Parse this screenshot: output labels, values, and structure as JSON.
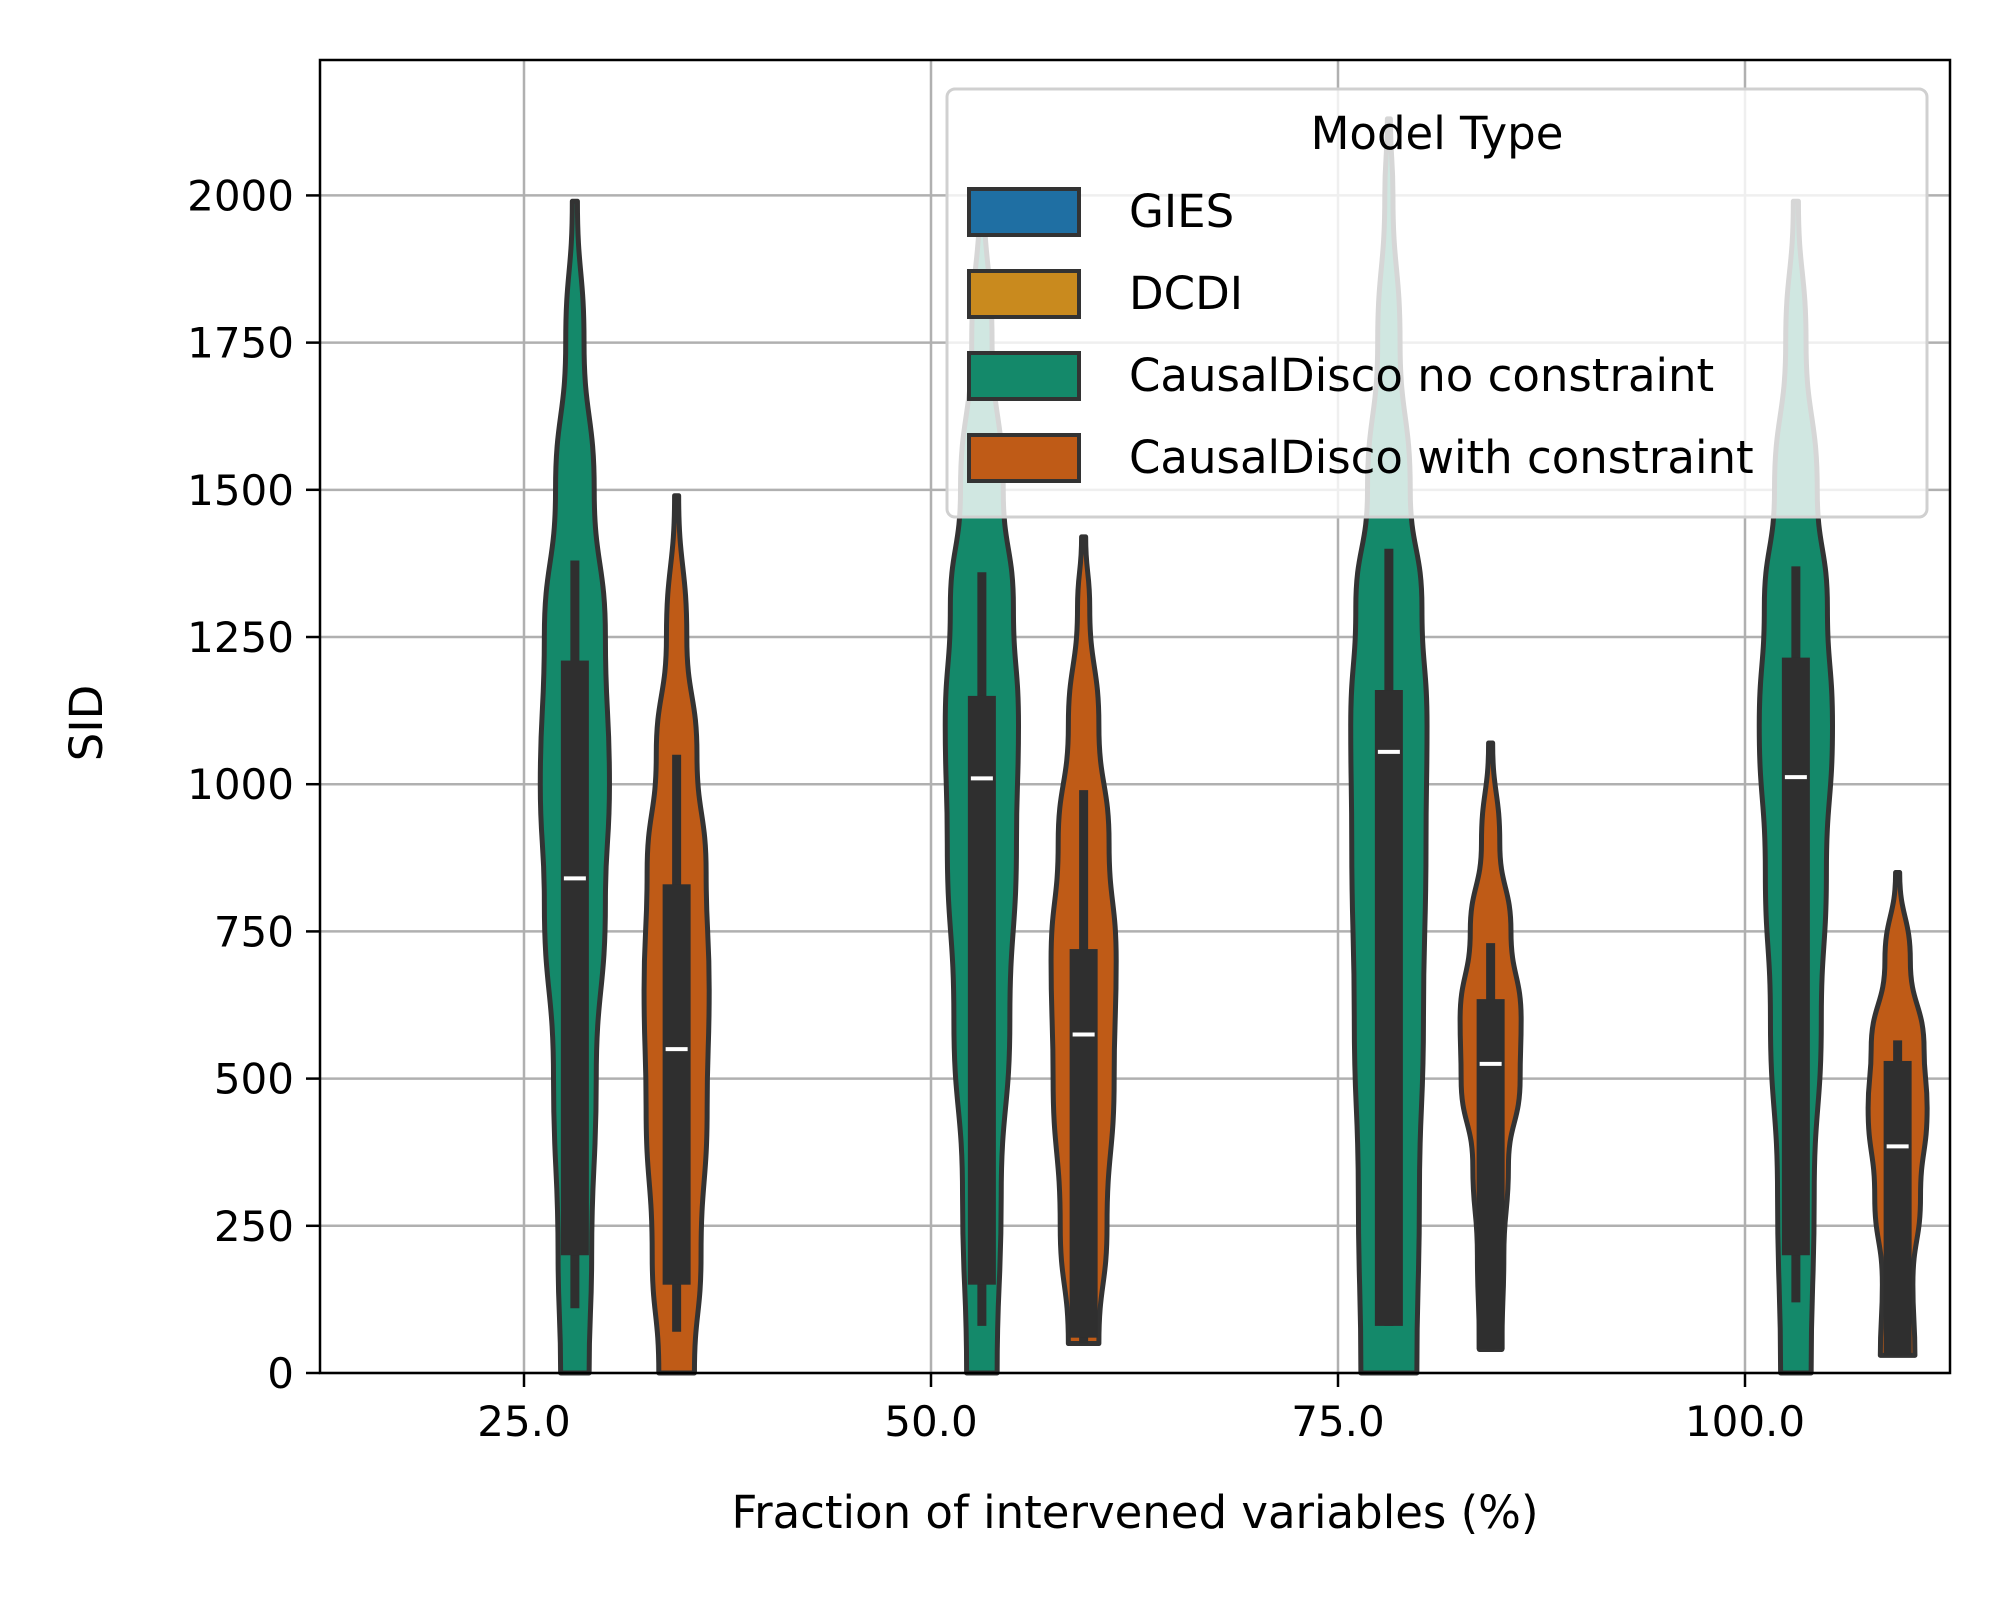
{
  "chart_data": {
    "type": "violin",
    "xlabel": "Fraction of intervened variables (%)",
    "ylabel": "SID",
    "categories": [
      "25.0",
      "50.0",
      "75.0",
      "100.0"
    ],
    "ylim": [
      0,
      2230
    ],
    "yticks": [
      "0",
      "250",
      "500",
      "750",
      "1000",
      "1250",
      "1500",
      "1750",
      "2000"
    ],
    "grid": true,
    "legend": {
      "title": "Model Type",
      "placement": "top-right",
      "entries": [
        {
          "label": "GIES",
          "color": "#1f6fa3"
        },
        {
          "label": "DCDI",
          "color": "#c98a1e"
        },
        {
          "label": "CausalDisco no constraint",
          "color": "#14896a"
        },
        {
          "label": "CausalDisco with constraint",
          "color": "#bf5b17"
        }
      ]
    },
    "series": [
      {
        "name": "CausalDisco no constraint",
        "color": "#14896a",
        "violins": [
          {
            "category": "25.0",
            "min": 0,
            "max": 1990,
            "whisker_low": 110,
            "whisker_high": 1380,
            "q1": 200,
            "q3": 1210,
            "median": 840,
            "profile": [
              [
                0,
                0.28
              ],
              [
                200,
                0.33
              ],
              [
                500,
                0.42
              ],
              [
                800,
                0.6
              ],
              [
                1000,
                0.68
              ],
              [
                1250,
                0.6
              ],
              [
                1500,
                0.38
              ],
              [
                1750,
                0.18
              ],
              [
                1990,
                0.05
              ]
            ]
          },
          {
            "category": "50.0",
            "min": 0,
            "max": 2010,
            "whisker_low": 80,
            "whisker_high": 1360,
            "q1": 150,
            "q3": 1150,
            "median": 1010,
            "profile": [
              [
                0,
                0.3
              ],
              [
                300,
                0.38
              ],
              [
                600,
                0.55
              ],
              [
                900,
                0.68
              ],
              [
                1100,
                0.72
              ],
              [
                1300,
                0.62
              ],
              [
                1500,
                0.42
              ],
              [
                1750,
                0.2
              ],
              [
                2010,
                0.04
              ]
            ]
          },
          {
            "category": "75.0",
            "min": 0,
            "max": 2130,
            "whisker_low": 80,
            "whisker_high": 1400,
            "q1": 80,
            "q3": 1160,
            "median": 1055,
            "profile": [
              [
                0,
                0.55
              ],
              [
                300,
                0.6
              ],
              [
                600,
                0.68
              ],
              [
                900,
                0.73
              ],
              [
                1100,
                0.75
              ],
              [
                1300,
                0.65
              ],
              [
                1500,
                0.42
              ],
              [
                1750,
                0.22
              ],
              [
                2000,
                0.08
              ],
              [
                2130,
                0.03
              ]
            ]
          },
          {
            "category": "100.0",
            "min": 0,
            "max": 1990,
            "whisker_low": 120,
            "whisker_high": 1370,
            "q1": 200,
            "q3": 1215,
            "median": 1012,
            "profile": [
              [
                0,
                0.3
              ],
              [
                300,
                0.36
              ],
              [
                600,
                0.5
              ],
              [
                850,
                0.6
              ],
              [
                1100,
                0.72
              ],
              [
                1300,
                0.62
              ],
              [
                1500,
                0.42
              ],
              [
                1750,
                0.2
              ],
              [
                1990,
                0.05
              ]
            ]
          }
        ]
      },
      {
        "name": "CausalDisco with constraint",
        "color": "#bf5b17",
        "violins": [
          {
            "category": "25.0",
            "min": 0,
            "max": 1490,
            "whisker_low": 70,
            "whisker_high": 1050,
            "q1": 150,
            "q3": 830,
            "median": 550,
            "profile": [
              [
                0,
                0.35
              ],
              [
                200,
                0.48
              ],
              [
                450,
                0.6
              ],
              [
                650,
                0.64
              ],
              [
                850,
                0.58
              ],
              [
                1050,
                0.4
              ],
              [
                1250,
                0.2
              ],
              [
                1490,
                0.04
              ]
            ]
          },
          {
            "category": "50.0",
            "min": 50,
            "max": 1420,
            "whisker_low": 50,
            "whisker_high": 990,
            "q1": 60,
            "q3": 720,
            "median": 575,
            "profile": [
              [
                50,
                0.3
              ],
              [
                250,
                0.46
              ],
              [
                500,
                0.6
              ],
              [
                700,
                0.64
              ],
              [
                900,
                0.5
              ],
              [
                1100,
                0.3
              ],
              [
                1300,
                0.12
              ],
              [
                1420,
                0.04
              ]
            ]
          },
          {
            "category": "75.0",
            "min": 40,
            "max": 1070,
            "whisker_low": 40,
            "whisker_high": 730,
            "q1": 40,
            "q3": 635,
            "median": 525,
            "profile": [
              [
                40,
                0.22
              ],
              [
                200,
                0.26
              ],
              [
                350,
                0.35
              ],
              [
                500,
                0.58
              ],
              [
                600,
                0.6
              ],
              [
                750,
                0.4
              ],
              [
                900,
                0.18
              ],
              [
                1070,
                0.04
              ]
            ]
          },
          {
            "category": "100.0",
            "min": 30,
            "max": 850,
            "whisker_low": 30,
            "whisker_high": 565,
            "q1": 30,
            "q3": 530,
            "median": 385,
            "profile": [
              [
                30,
                0.34
              ],
              [
                150,
                0.3
              ],
              [
                300,
                0.45
              ],
              [
                450,
                0.58
              ],
              [
                550,
                0.52
              ],
              [
                700,
                0.25
              ],
              [
                850,
                0.04
              ]
            ]
          }
        ]
      }
    ]
  }
}
